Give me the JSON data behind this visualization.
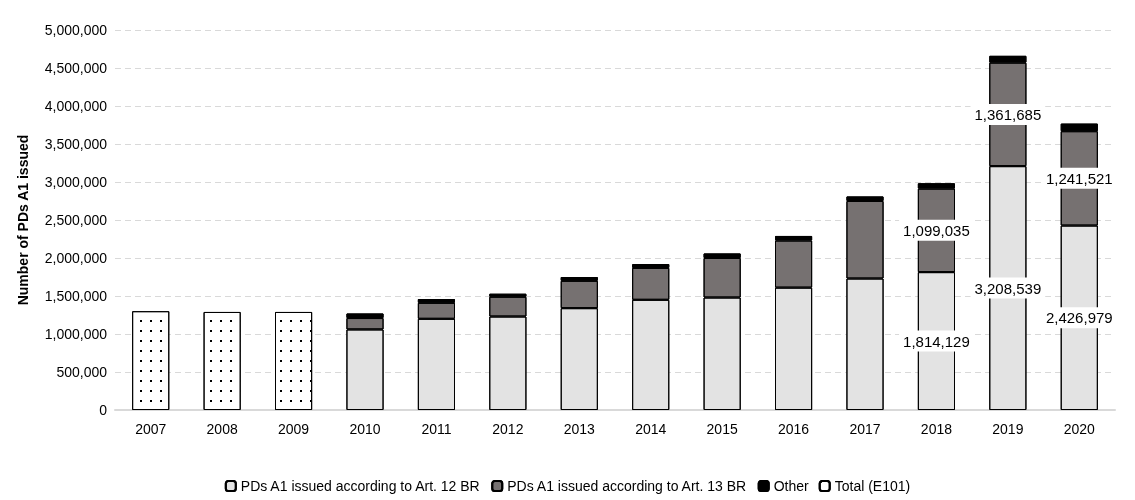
{
  "chart_data": {
    "type": "bar",
    "stacked": true,
    "ylabel": "Number of PDs A1 issued",
    "categories": [
      "2007",
      "2008",
      "2009",
      "2010",
      "2011",
      "2012",
      "2013",
      "2014",
      "2015",
      "2016",
      "2017",
      "2018",
      "2019",
      "2020"
    ],
    "series": [
      {
        "name": "PDs A1 issued according to Art. 12 BR",
        "color": "#e3e3e3",
        "values": [
          null,
          null,
          null,
          1060000,
          1200000,
          1230000,
          1340000,
          1450000,
          1480000,
          1610000,
          1730000,
          1814129,
          3208539,
          2426979
        ],
        "value_labels": [
          null,
          null,
          null,
          null,
          null,
          null,
          null,
          null,
          null,
          null,
          null,
          "1,814,129",
          "3,208,539",
          "2,426,979"
        ]
      },
      {
        "name": "PDs A1 issued according to Art. 13 BR",
        "color": "#767171",
        "values": [
          null,
          null,
          null,
          150000,
          210000,
          260000,
          360000,
          420000,
          520000,
          620000,
          1020000,
          1099035,
          1361685,
          1241521
        ],
        "value_labels": [
          null,
          null,
          null,
          null,
          null,
          null,
          null,
          null,
          null,
          null,
          null,
          "1,099,035",
          "1,361,685",
          "1,241,521"
        ]
      },
      {
        "name": "Other",
        "color": "#000000",
        "values": [
          null,
          null,
          null,
          60000,
          50000,
          40000,
          50000,
          50000,
          60000,
          60000,
          60000,
          70000,
          90000,
          100000
        ]
      },
      {
        "name": "Total (E101)",
        "color": "#ffffff",
        "values": [
          1300000,
          1290000,
          1290000,
          null,
          null,
          null,
          null,
          null,
          null,
          null,
          null,
          null,
          null,
          null
        ]
      }
    ],
    "ylim": [
      0,
      5000000
    ],
    "yticks": [
      0,
      {
        "value": 500000,
        "label": "500,000"
      },
      {
        "value": 1000000,
        "label": "1,000,000"
      },
      {
        "value": 1500000,
        "label": "1,500,000"
      },
      {
        "value": 2000000,
        "label": "2,000,000"
      },
      {
        "value": 2500000,
        "label": "2,500,000"
      },
      {
        "value": 3000000,
        "label": "3,000,000"
      },
      {
        "value": 3500000,
        "label": "3,500,000"
      },
      {
        "value": 4000000,
        "label": "4,000,000"
      },
      {
        "value": 4500000,
        "label": "4,500,000"
      },
      {
        "value": 5000000,
        "label": "5,000,000"
      }
    ],
    "grid": "y",
    "legend": "bottom"
  }
}
